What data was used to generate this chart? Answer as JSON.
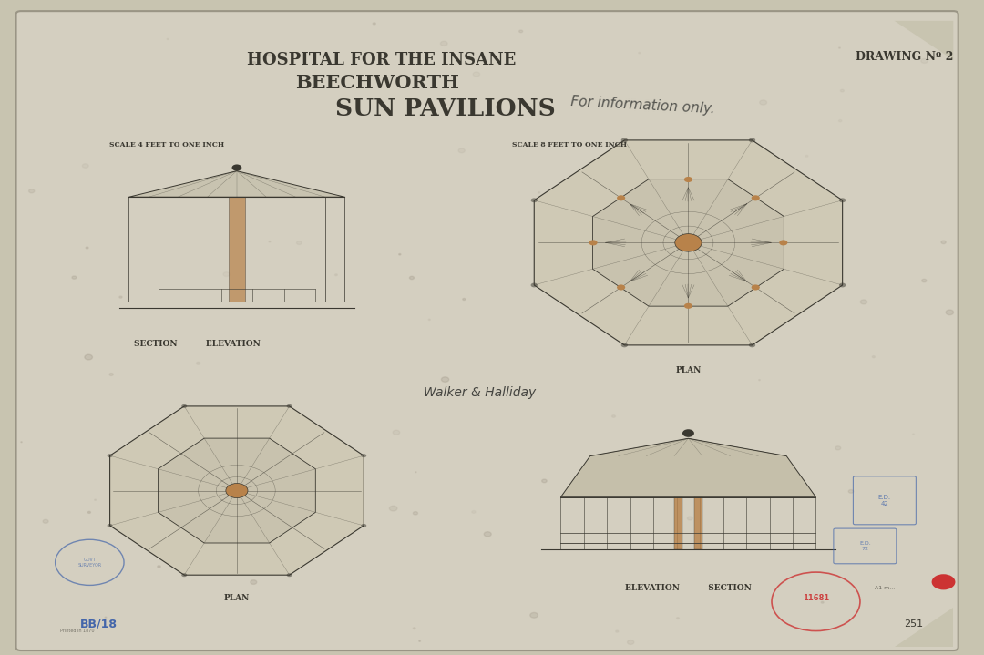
{
  "bg_color": "#c8c4b0",
  "paper_color": "#d4cfc0",
  "paper_inner": "#cdc8b8",
  "title_line1": "HOSPITAL FOR THE INSANE",
  "title_line2": "BEECHWORTH",
  "title_line3": "SUN PAVILIONS",
  "drawing_no": "DRAWING Nº 2",
  "handwritten_note": "For information only.",
  "scale_left": "SCALE 4 FEET TO ONE INCH",
  "scale_right": "SCALE 8 FEET TO ONE INCH",
  "label_section_elevation": "SECTION          ELEVATION",
  "label_plan_top": "PLAN",
  "label_elevation_section": "ELEVATION          SECTION",
  "label_plan_bottom": "PLAN",
  "signature": "Walker & Halliday",
  "stamp_text1": "E.D.",
  "stamp_text2": "BB/18",
  "stamp_red": "11681",
  "stamp_num": "251",
  "title_fontsize": 13,
  "subtitle_fontsize": 15,
  "main_title_fontsize": 19,
  "label_fontsize": 7,
  "drawing_color": "#3a3830",
  "highlight_color": "#b8824a",
  "stamp_color_blue": "#4466aa",
  "stamp_color_red": "#cc3333"
}
